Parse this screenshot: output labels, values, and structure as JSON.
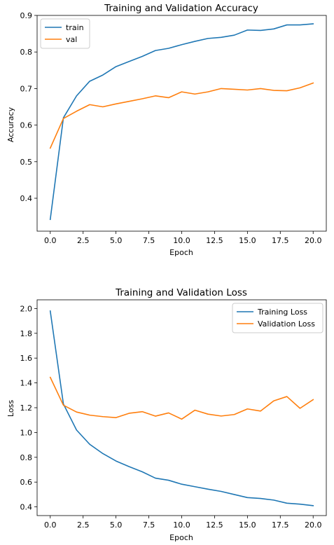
{
  "chart_data": [
    {
      "type": "line",
      "title": "Training and Validation Accuracy",
      "xlabel": "Epoch",
      "ylabel": "Accuracy",
      "xlim": [
        -1,
        21
      ],
      "ylim": [
        0.31,
        0.9
      ],
      "xticks": [
        0,
        2.5,
        5,
        7.5,
        10,
        12.5,
        15,
        17.5,
        20
      ],
      "xtick_labels": [
        "0.0",
        "2.5",
        "5.0",
        "7.5",
        "10.0",
        "12.5",
        "15.0",
        "17.5",
        "20.0"
      ],
      "yticks": [
        0.4,
        0.5,
        0.6,
        0.7,
        0.8,
        0.9
      ],
      "ytick_labels": [
        "0.4",
        "0.5",
        "0.6",
        "0.7",
        "0.8",
        "0.9"
      ],
      "legend": "top-left",
      "grid": false,
      "x": [
        0,
        1,
        2,
        3,
        4,
        5,
        6,
        7,
        8,
        9,
        10,
        11,
        12,
        13,
        14,
        15,
        16,
        17,
        18,
        19,
        20
      ],
      "series": [
        {
          "name": "train",
          "color": "#1f77b4",
          "values": [
            0.342,
            0.62,
            0.68,
            0.72,
            0.737,
            0.76,
            0.774,
            0.788,
            0.804,
            0.81,
            0.82,
            0.829,
            0.837,
            0.84,
            0.846,
            0.86,
            0.859,
            0.863,
            0.874,
            0.874,
            0.877
          ]
        },
        {
          "name": "val",
          "color": "#ff7f0e",
          "values": [
            0.537,
            0.618,
            0.638,
            0.656,
            0.65,
            0.658,
            0.665,
            0.672,
            0.68,
            0.675,
            0.691,
            0.685,
            0.691,
            0.7,
            0.698,
            0.696,
            0.7,
            0.695,
            0.694,
            0.702,
            0.715
          ]
        }
      ]
    },
    {
      "type": "line",
      "title": "Training and Validation Loss",
      "xlabel": "Epoch",
      "ylabel": "Loss",
      "xlim": [
        -1,
        21
      ],
      "ylim": [
        0.33,
        2.07
      ],
      "xticks": [
        0,
        2.5,
        5,
        7.5,
        10,
        12.5,
        15,
        17.5,
        20
      ],
      "xtick_labels": [
        "0.0",
        "2.5",
        "5.0",
        "7.5",
        "10.0",
        "12.5",
        "15.0",
        "17.5",
        "20.0"
      ],
      "yticks": [
        0.4,
        0.6,
        0.8,
        1.0,
        1.2,
        1.4,
        1.6,
        1.8,
        2.0
      ],
      "ytick_labels": [
        "0.4",
        "0.6",
        "0.8",
        "1.0",
        "1.2",
        "1.4",
        "1.6",
        "1.8",
        "2.0"
      ],
      "legend": "top-right",
      "grid": false,
      "x": [
        0,
        1,
        2,
        3,
        4,
        5,
        6,
        7,
        8,
        9,
        10,
        11,
        12,
        13,
        14,
        15,
        16,
        17,
        18,
        19,
        20
      ],
      "series": [
        {
          "name": "Training Loss",
          "color": "#1f77b4",
          "values": [
            1.98,
            1.23,
            1.02,
            0.905,
            0.83,
            0.77,
            0.725,
            0.683,
            0.632,
            0.615,
            0.583,
            0.563,
            0.543,
            0.525,
            0.5,
            0.475,
            0.468,
            0.455,
            0.43,
            0.422,
            0.41
          ]
        },
        {
          "name": "Validation Loss",
          "color": "#ff7f0e",
          "values": [
            1.445,
            1.22,
            1.165,
            1.14,
            1.128,
            1.12,
            1.155,
            1.168,
            1.132,
            1.158,
            1.108,
            1.18,
            1.148,
            1.133,
            1.145,
            1.19,
            1.173,
            1.255,
            1.29,
            1.195,
            1.265
          ]
        }
      ]
    }
  ]
}
